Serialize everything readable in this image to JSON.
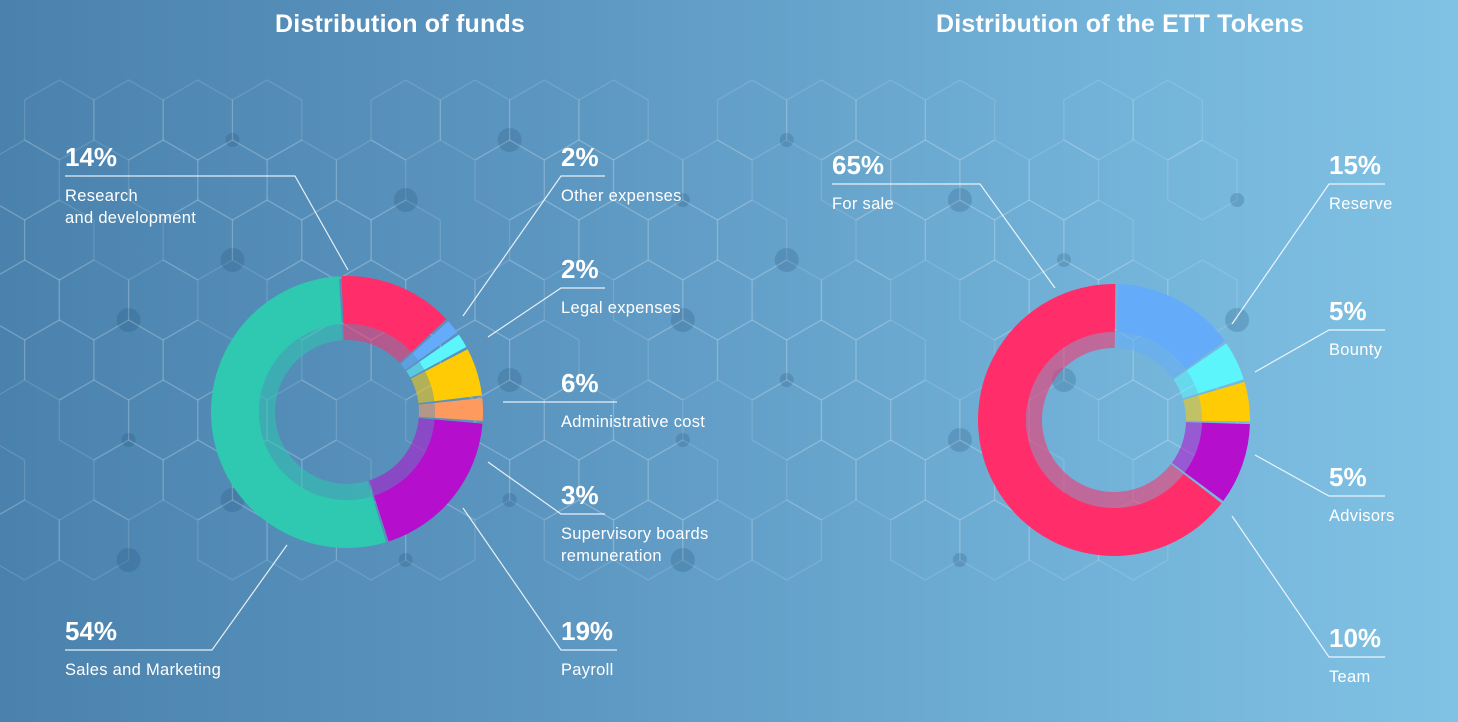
{
  "colors": {
    "red": "#ff2d6a",
    "blue": "#64acfa",
    "cyan": "#5df5fc",
    "yellow": "#ffcb05",
    "orange": "#ff9a5e",
    "purple": "#b50ecc",
    "teal": "#2ec9b0"
  },
  "chart_data": [
    {
      "type": "pie",
      "title": "Distribution of funds",
      "slices": [
        {
          "value": "14%",
          "label": [
            "Research",
            "and development"
          ],
          "percent": 14,
          "color": "#ff2d6a"
        },
        {
          "value": "2%",
          "label": [
            "Other expenses"
          ],
          "percent": 2,
          "color": "#64acfa"
        },
        {
          "value": "2%",
          "label": [
            "Legal expenses"
          ],
          "percent": 2,
          "color": "#5df5fc"
        },
        {
          "value": "6%",
          "label": [
            "Administrative cost"
          ],
          "percent": 6,
          "color": "#ffcb05"
        },
        {
          "value": "3%",
          "label": [
            "Supervisory boards",
            "remuneration"
          ],
          "percent": 3,
          "color": "#ff9a5e"
        },
        {
          "value": "19%",
          "label": [
            "Payroll"
          ],
          "percent": 19,
          "color": "#b50ecc"
        },
        {
          "value": "54%",
          "label": [
            "Sales and Marketing"
          ],
          "percent": 54,
          "color": "#2ec9b0"
        }
      ]
    },
    {
      "type": "pie",
      "title": "Distribution of the ETT Tokens",
      "slices": [
        {
          "value": "15%",
          "label": [
            "Reserve"
          ],
          "percent": 15,
          "color": "#64acfa"
        },
        {
          "value": "5%",
          "label": [
            "Bounty"
          ],
          "percent": 5,
          "color": "#5df5fc"
        },
        {
          "value": "5%",
          "label": [
            "Advisors"
          ],
          "percent": 5,
          "color": "#ffcb05"
        },
        {
          "value": "10%",
          "label": [
            "Team"
          ],
          "percent": 10,
          "color": "#b50ecc"
        },
        {
          "value": "65%",
          "label": [
            "For sale"
          ],
          "percent": 65,
          "color": "#ff2d6a"
        }
      ]
    }
  ]
}
